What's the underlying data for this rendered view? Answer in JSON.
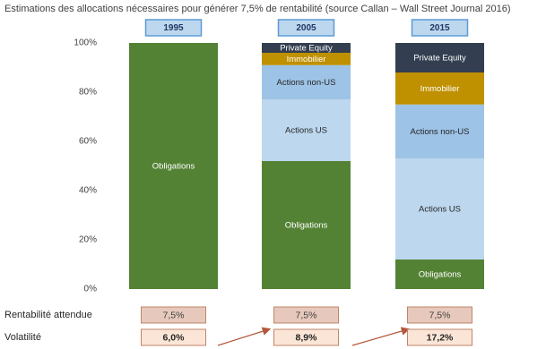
{
  "chart_data": {
    "type": "stacked-bar",
    "title": "Estimations des allocations nécessaires pour générer 7,5% de rentabilité (source Callan – Wall Street Journal 2016)",
    "categories": [
      "1995",
      "2005",
      "2015"
    ],
    "series": [
      {
        "name": "Obligations",
        "color": "#548235",
        "values": [
          100,
          52,
          12
        ]
      },
      {
        "name": "Actions US",
        "color": "#bdd7ee",
        "values": [
          null,
          25,
          41
        ]
      },
      {
        "name": "Actions non-US",
        "color": "#9dc3e6",
        "values": [
          null,
          14,
          22
        ]
      },
      {
        "name": "Immobilier",
        "color": "#bf9000",
        "values": [
          null,
          5,
          13
        ]
      },
      {
        "name": "Private Equity",
        "color": "#333f50",
        "values": [
          null,
          4,
          12
        ]
      }
    ],
    "ylim": [
      0,
      100
    ],
    "yticks": [
      {
        "value": 0,
        "label": "0%"
      },
      {
        "value": 20,
        "label": "20%"
      },
      {
        "value": 40,
        "label": "40%"
      },
      {
        "value": 60,
        "label": "60%"
      },
      {
        "value": 80,
        "label": "80%"
      },
      {
        "value": 100,
        "label": "100%"
      }
    ],
    "rows": [
      {
        "label": "Rentabilité attendue",
        "values": [
          7.5,
          7.5,
          7.5
        ],
        "value_labels": [
          "7,5%",
          "7,5%",
          "7,5%"
        ]
      },
      {
        "label": "Volatilité",
        "values": [
          6.0,
          8.9,
          17.2
        ],
        "value_labels": [
          "6,0%",
          "8,9%",
          "17,2%"
        ]
      }
    ]
  }
}
